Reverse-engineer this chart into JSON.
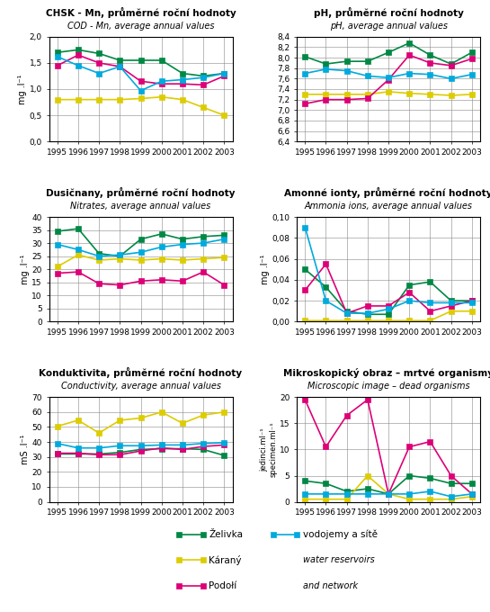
{
  "years": [
    1995,
    1996,
    1997,
    1998,
    1999,
    2000,
    2001,
    2002,
    2003
  ],
  "colors": {
    "Zelivka": "#008844",
    "Karany": "#ddcc00",
    "Podoli": "#dd0077",
    "Vodojemy": "#00aadd"
  },
  "chsk": {
    "title_cz": "CHSK - Mn, průměrné roční hodnoty",
    "title_en": "COD - Mn, average annual values",
    "ylabel": "mg .l⁻¹",
    "ylim": [
      0.0,
      2.0
    ],
    "yticks": [
      0.0,
      0.5,
      1.0,
      1.5,
      2.0
    ],
    "ytick_labels": [
      "0,0",
      "0,5",
      "1,0",
      "1,5",
      "2,0"
    ],
    "Zelivka": [
      1.7,
      1.75,
      1.68,
      1.55,
      1.55,
      1.55,
      1.3,
      1.25,
      1.3
    ],
    "Karany": [
      0.8,
      0.8,
      0.8,
      0.8,
      0.82,
      0.85,
      0.8,
      0.65,
      0.5
    ],
    "Podoli": [
      1.45,
      1.65,
      1.5,
      1.43,
      1.15,
      1.1,
      1.1,
      1.08,
      1.25
    ],
    "Vodojemy": [
      1.62,
      1.45,
      1.3,
      1.43,
      0.97,
      1.15,
      1.18,
      1.22,
      1.3
    ]
  },
  "ph": {
    "title_cz": "pH, průměrné roční hodnoty",
    "title_en": "pH, average annual values",
    "ylabel": "",
    "ylim": [
      6.4,
      8.4
    ],
    "yticks": [
      6.4,
      6.6,
      6.8,
      7.0,
      7.2,
      7.4,
      7.6,
      7.8,
      8.0,
      8.2,
      8.4
    ],
    "ytick_labels": [
      "6,4",
      "6,6",
      "6,8",
      "7,0",
      "7,2",
      "7,4",
      "7,6",
      "7,8",
      "8,0",
      "8,2",
      "8,4"
    ],
    "Zelivka": [
      8.02,
      7.88,
      7.93,
      7.93,
      8.1,
      8.28,
      8.05,
      7.88,
      8.1
    ],
    "Karany": [
      7.3,
      7.3,
      7.3,
      7.3,
      7.35,
      7.32,
      7.3,
      7.28,
      7.3
    ],
    "Podoli": [
      7.12,
      7.2,
      7.2,
      7.22,
      7.58,
      8.05,
      7.9,
      7.85,
      7.98
    ],
    "Vodojemy": [
      7.7,
      7.78,
      7.75,
      7.65,
      7.62,
      7.7,
      7.68,
      7.6,
      7.68
    ]
  },
  "nitrates": {
    "title_cz": "Dusičnany, průměrné roční hodnoty",
    "title_en": "Nitrates, average annual values",
    "ylabel": "mg .l⁻¹",
    "ylim": [
      0,
      40
    ],
    "yticks": [
      0,
      5,
      10,
      15,
      20,
      25,
      30,
      35,
      40
    ],
    "ytick_labels": [
      "0",
      "5",
      "10",
      "15",
      "20",
      "25",
      "30",
      "35",
      "40"
    ],
    "Zelivka": [
      34.5,
      35.5,
      26.0,
      25.0,
      31.5,
      33.5,
      31.5,
      32.5,
      33.0
    ],
    "Karany": [
      21.0,
      25.5,
      23.5,
      24.0,
      23.5,
      24.0,
      23.5,
      24.0,
      24.5
    ],
    "Podoli": [
      18.5,
      19.0,
      14.5,
      14.0,
      15.5,
      16.0,
      15.5,
      19.0,
      14.0
    ],
    "Vodojemy": [
      29.5,
      27.5,
      25.0,
      25.5,
      26.5,
      28.5,
      29.5,
      30.0,
      31.5
    ]
  },
  "ammonia": {
    "title_cz": "Amonné ionty, průměrné roční hodnoty",
    "title_en": "Ammonia ions, average annual values",
    "ylabel": "mg .l⁻¹",
    "ylim": [
      0.0,
      0.1
    ],
    "yticks": [
      0.0,
      0.02,
      0.04,
      0.06,
      0.08,
      0.1
    ],
    "ytick_labels": [
      "0,00",
      "0,02",
      "0,04",
      "0,06",
      "0,08",
      "0,10"
    ],
    "Zelivka": [
      0.05,
      0.033,
      0.01,
      0.007,
      0.007,
      0.035,
      0.038,
      0.02,
      0.02
    ],
    "Karany": [
      0.001,
      0.001,
      0.001,
      0.001,
      0.001,
      0.001,
      0.001,
      0.01,
      0.01
    ],
    "Podoli": [
      0.03,
      0.055,
      0.008,
      0.015,
      0.015,
      0.028,
      0.01,
      0.015,
      0.02
    ],
    "Vodojemy": [
      0.09,
      0.02,
      0.008,
      0.008,
      0.012,
      0.02,
      0.018,
      0.018,
      0.018
    ]
  },
  "conductivity": {
    "title_cz": "Konduktivita, průměrné roční hodnoty",
    "title_en": "Conductivity, average annual values",
    "ylabel": "mS .l⁻¹",
    "ylim": [
      0,
      70
    ],
    "yticks": [
      0,
      10,
      20,
      30,
      40,
      50,
      60,
      70
    ],
    "ytick_labels": [
      "0",
      "10",
      "20",
      "30",
      "40",
      "50",
      "60",
      "70"
    ],
    "Zelivka": [
      32.0,
      32.0,
      32.0,
      33.0,
      35.0,
      35.5,
      35.5,
      35.0,
      31.0
    ],
    "Karany": [
      50.5,
      54.5,
      46.0,
      54.5,
      56.0,
      60.0,
      52.5,
      58.0,
      60.0
    ],
    "Podoli": [
      32.5,
      32.5,
      31.5,
      31.5,
      34.0,
      36.0,
      35.0,
      37.0,
      38.0
    ],
    "Vodojemy": [
      39.0,
      36.0,
      36.0,
      37.5,
      37.5,
      38.0,
      38.0,
      39.0,
      39.5
    ]
  },
  "microscopic": {
    "title_cz": "Mikroskopický obraz – mrtvé organismy",
    "title_en": "Microscopic image – dead organisms",
    "ylabel": "jedinci.ml⁻¹\nspecimen.ml⁻¹",
    "ylim": [
      0,
      20
    ],
    "yticks": [
      0,
      5,
      10,
      15,
      20
    ],
    "ytick_labels": [
      "0",
      "5",
      "10",
      "15",
      "20"
    ],
    "Zelivka": [
      4.0,
      3.5,
      2.0,
      2.5,
      1.5,
      5.0,
      4.5,
      3.5,
      3.5
    ],
    "Karany": [
      0.5,
      0.5,
      0.5,
      5.0,
      1.5,
      0.5,
      0.5,
      0.5,
      1.0
    ],
    "Podoli": [
      19.5,
      10.5,
      16.5,
      19.5,
      1.5,
      10.5,
      11.5,
      5.0,
      1.5
    ],
    "Vodojemy": [
      1.5,
      1.5,
      1.5,
      1.5,
      1.5,
      1.5,
      2.0,
      1.0,
      1.5
    ]
  },
  "legend_labels": {
    "Zelivka": "Želivka",
    "Karany": "Káraný",
    "Podoli": "Podołí",
    "Vodojemy": "vodojemy a sítě\nwater reservoirs\nand network"
  }
}
